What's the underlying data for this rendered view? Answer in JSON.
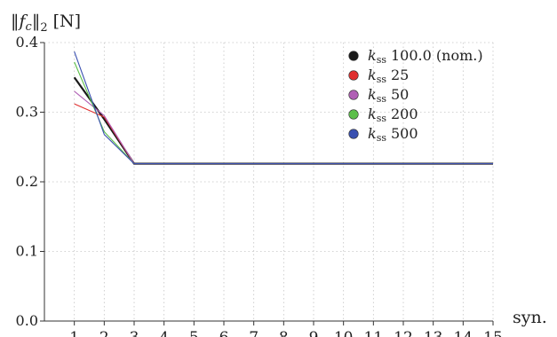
{
  "chart_data": {
    "type": "line",
    "ylabel": "‖f_c‖₂ [N]",
    "ylabel_parts": {
      "norm_left": "‖",
      "f": "f",
      "sub": "c",
      "norm_right": "‖",
      "two": "2",
      "unit": "[N]"
    },
    "xlabel": "syn.",
    "x": [
      1,
      2,
      3,
      4,
      5,
      6,
      7,
      8,
      9,
      10,
      11,
      12,
      13,
      14,
      15
    ],
    "xticks": [
      "1",
      "2",
      "3",
      "4",
      "5",
      "6",
      "7",
      "8",
      "9",
      "10",
      "11",
      "12",
      "13",
      "14",
      "15"
    ],
    "yticks": [
      "0.0",
      "0.1",
      "0.2",
      "0.3",
      "0.4"
    ],
    "xlim": [
      0.0,
      15.0
    ],
    "ylim": [
      0.0,
      0.4
    ],
    "grid": true,
    "legend_position": "top-right",
    "series": [
      {
        "name": "100.0 (nom.)",
        "color": "#1a1a1a",
        "values": [
          0.35,
          0.29,
          0.226,
          0.226,
          0.226,
          0.226,
          0.226,
          0.226,
          0.226,
          0.226,
          0.226,
          0.226,
          0.226,
          0.226,
          0.226
        ]
      },
      {
        "name": "25",
        "color": "#e03030",
        "values": [
          0.312,
          0.293,
          0.226,
          0.226,
          0.226,
          0.226,
          0.226,
          0.226,
          0.226,
          0.226,
          0.226,
          0.226,
          0.226,
          0.226,
          0.226
        ]
      },
      {
        "name": "50",
        "color": "#b05fb5",
        "values": [
          0.33,
          0.295,
          0.226,
          0.226,
          0.226,
          0.226,
          0.226,
          0.226,
          0.226,
          0.226,
          0.226,
          0.226,
          0.226,
          0.226,
          0.226
        ]
      },
      {
        "name": "200",
        "color": "#5cbf4a",
        "values": [
          0.372,
          0.272,
          0.226,
          0.226,
          0.226,
          0.226,
          0.226,
          0.226,
          0.226,
          0.226,
          0.226,
          0.226,
          0.226,
          0.226,
          0.226
        ]
      },
      {
        "name": "500",
        "color": "#3a50b0",
        "values": [
          0.387,
          0.268,
          0.226,
          0.226,
          0.226,
          0.226,
          0.226,
          0.226,
          0.226,
          0.226,
          0.226,
          0.226,
          0.226,
          0.226,
          0.226
        ]
      }
    ],
    "legend_prefix": {
      "k": "k",
      "sub": "ss"
    }
  }
}
